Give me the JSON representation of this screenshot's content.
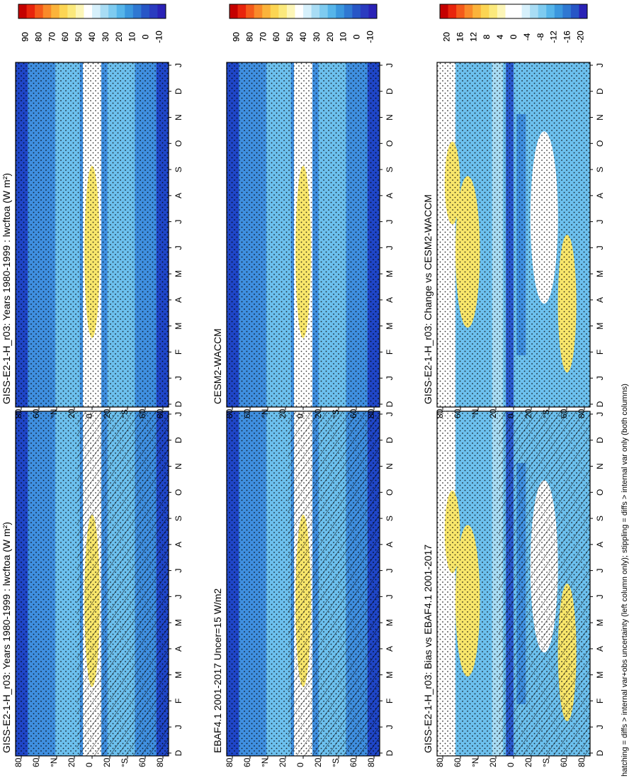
{
  "footnote": "hatching = diffs > internal var+obs uncertainty (left column only); stippling = diffs > internal var only (both columns)",
  "months": [
    "D",
    "J",
    "F",
    "M",
    "A",
    "M",
    "J",
    "J",
    "A",
    "S",
    "O",
    "N",
    "D",
    "J"
  ],
  "lat_labels": [
    "80",
    "60",
    "°N",
    "20",
    "0",
    "20",
    "°S",
    "60",
    "80"
  ],
  "colors": {
    "deep_blue": "#1f46c8",
    "mid_blue": "#3f8fe0",
    "light_blue": "#6cc0ee",
    "pale_blue": "#a8dcf4",
    "white": "#ffffff",
    "yellow": "#f8e66a",
    "frame": "#000000"
  },
  "scales": {
    "absolute": [
      "90",
      "80",
      "70",
      "60",
      "50",
      "40",
      "30",
      "20",
      "10",
      "0",
      "-10"
    ],
    "difference": [
      "20",
      "16",
      "12",
      "8",
      "4",
      "0",
      "-4",
      "-8",
      "-12",
      "-16",
      "-20"
    ]
  },
  "palettes": {
    "absolute": [
      "#c40000",
      "#e8240c",
      "#f45a1a",
      "#f98a2a",
      "#fbb33b",
      "#fcd553",
      "#fbe97c",
      "#fdf6b8",
      "#ffffff",
      "#d6f0fb",
      "#a8dcf4",
      "#7ecbf0",
      "#56b5ea",
      "#3b97de",
      "#2f78d2",
      "#2756c6",
      "#2a3bc0",
      "#2a22b6"
    ],
    "difference": [
      "#c40000",
      "#e8240c",
      "#f45a1a",
      "#f98a2a",
      "#fbb33b",
      "#fcd553",
      "#fbe97c",
      "#fdf6b8",
      "#ffffff",
      "#ffffff",
      "#d6f0fb",
      "#a8dcf4",
      "#7ecbf0",
      "#56b5ea",
      "#3b97de",
      "#2f78d2",
      "#2756c6",
      "#2a22b6"
    ]
  },
  "chart_data": [
    {
      "type": "heatmap",
      "panel": "top-left",
      "title": "GISS-E2-1-H_r03: Years 1980-1999 : lwcftoa (W m²)",
      "x_axis": "latitude (80N to 80S)",
      "y_axis": "month (Dec to Jan)",
      "scale": "absolute",
      "hatching": true,
      "stippling": true
    },
    {
      "type": "heatmap",
      "panel": "top-right",
      "title": "GISS-E2-1-H_r03: Years 1980-1999 : lwcftoa (W m²)",
      "x_axis": "latitude (80N to 80S)",
      "y_axis": "month (Dec to Jan)",
      "scale": "absolute",
      "hatching": false,
      "stippling": true
    },
    {
      "type": "heatmap",
      "panel": "middle-left",
      "title": "EBAF4.1 2001-2017 Uncer=15 W/m2",
      "x_axis": "latitude (80N to 80S)",
      "y_axis": "month (Dec to Jan)",
      "scale": "absolute",
      "hatching": true,
      "stippling": true
    },
    {
      "type": "heatmap",
      "panel": "middle-right",
      "title": "CESM2-WACCM",
      "x_axis": "latitude (80N to 80S)",
      "y_axis": "month (Dec to Jan)",
      "scale": "absolute",
      "hatching": false,
      "stippling": true
    },
    {
      "type": "heatmap",
      "panel": "bottom-left",
      "title": "GISS-E2-1-H_r03: Bias vs EBAF4.1 2001-2017",
      "x_axis": "latitude (80N to 80S)",
      "y_axis": "month (Dec to Jan)",
      "scale": "difference",
      "hatching": true,
      "stippling": true
    },
    {
      "type": "heatmap",
      "panel": "bottom-right",
      "title": "GISS-E2-1-H_r03: Change vs CESM2-WACCM",
      "x_axis": "latitude (80N to 80S)",
      "y_axis": "month (Dec to Jan)",
      "scale": "difference",
      "hatching": false,
      "stippling": true
    }
  ]
}
